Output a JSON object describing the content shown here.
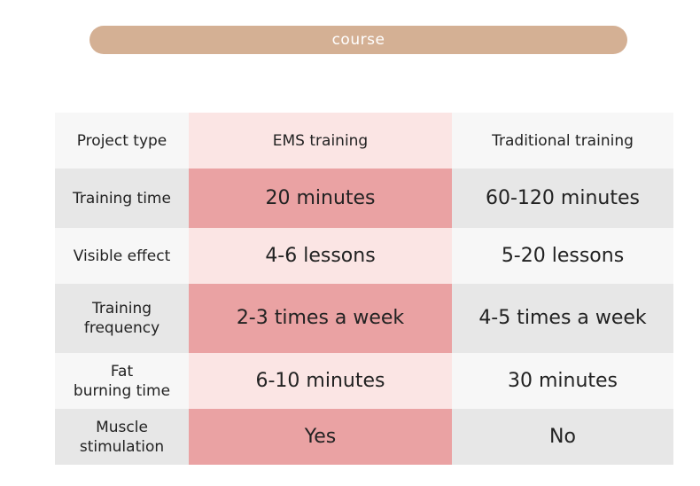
{
  "header": {
    "title": "course"
  },
  "table": {
    "columns": [
      "Project type",
      "EMS training",
      "Traditional training"
    ],
    "rows": [
      {
        "label": [
          "Training time"
        ],
        "cells": [
          "20 minutes",
          "60-120 minutes"
        ]
      },
      {
        "label": [
          "Visible effect"
        ],
        "cells": [
          "4-6 lessons",
          "5-20 lessons"
        ]
      },
      {
        "label": [
          "Training",
          "frequency"
        ],
        "cells": [
          "2-3 times a week",
          "4-5 times a week"
        ]
      },
      {
        "label": [
          "Fat",
          "burning time"
        ],
        "cells": [
          "6-10 minutes",
          "30 minutes"
        ]
      },
      {
        "label": [
          "Muscle",
          "stimulation"
        ],
        "cells": [
          "Yes",
          "No"
        ]
      }
    ]
  }
}
